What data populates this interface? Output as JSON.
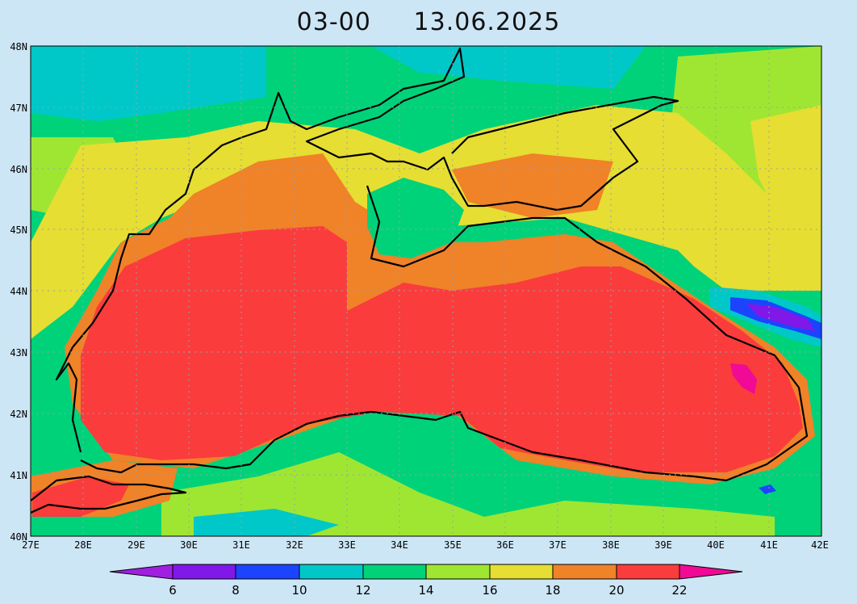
{
  "title": {
    "time": "03-00",
    "date": "13.06.2025"
  },
  "map": {
    "lat_ticks": [
      "48N",
      "47N",
      "46N",
      "45N",
      "44N",
      "43N",
      "42N",
      "41N",
      "40N"
    ],
    "lon_ticks": [
      "27E",
      "28E",
      "29E",
      "30E",
      "31E",
      "32E",
      "33E",
      "34E",
      "35E",
      "36E",
      "37E",
      "38E",
      "39E",
      "40E",
      "41E",
      "42E"
    ],
    "grid": true
  },
  "colorbar": {
    "labels": [
      "6",
      "8",
      "10",
      "12",
      "14",
      "16",
      "18",
      "20",
      "22"
    ],
    "colors": [
      "#a020e0",
      "#8018e8",
      "#1c44ff",
      "#00c8c8",
      "#00d27a",
      "#9fe632",
      "#e6de32",
      "#f08228",
      "#fa3c3c",
      "#f00a96"
    ]
  }
}
